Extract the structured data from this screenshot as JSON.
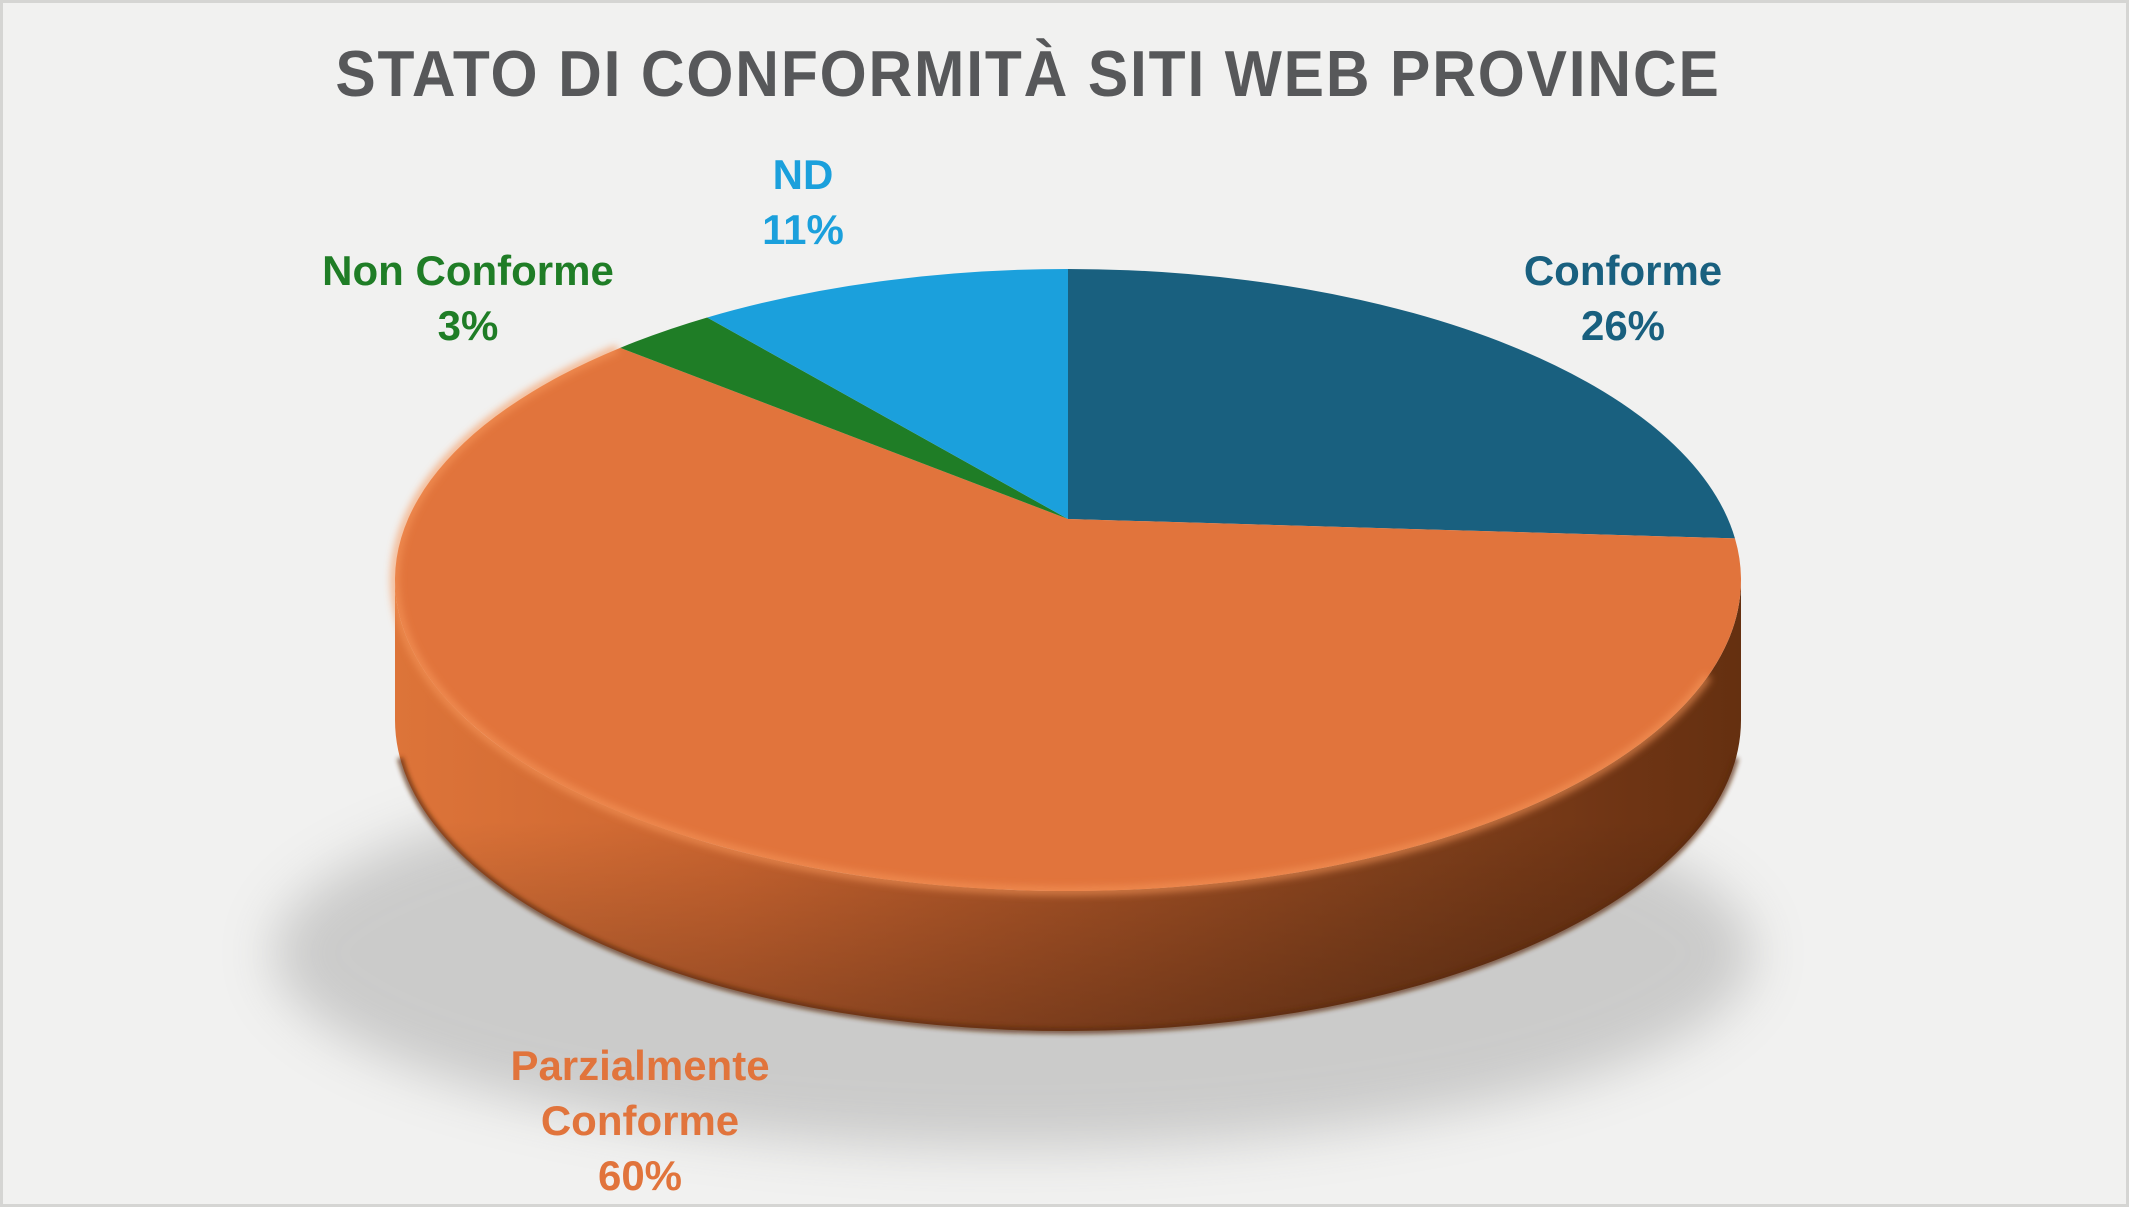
{
  "theme": {
    "background": "#F1F1F0",
    "frame_border": "#D5D5D3",
    "title_color": "#57585A",
    "wall_dark_edge": "#5C2A10",
    "wall_highlight": "#F6965A",
    "shadow_color": "#7F7F7F",
    "wall_gradient": [
      "#DD7439",
      "#CB6530",
      "#A95326",
      "#83411C",
      "#6E3414",
      "#653010"
    ]
  },
  "chart_data": {
    "type": "pie",
    "style": "3d",
    "title": "STATO DI CONFORMITÀ SITI WEB PROVINCE",
    "legend": "none",
    "data_labels": "category name and percentage, outside end",
    "total_percent": 100,
    "series": [
      {
        "label": "Conforme",
        "value": 26,
        "pct_label": "26%",
        "color": "#19607F"
      },
      {
        "label": "Parzialmente Conforme",
        "value": 60,
        "pct_label": "60%",
        "color": "#E1743C"
      },
      {
        "label": "Non Conforme",
        "value": 3,
        "pct_label": "3%",
        "color": "#1F7D26"
      },
      {
        "label": "ND",
        "value": 11,
        "pct_label": "11%",
        "color": "#1BA0DC"
      }
    ]
  }
}
